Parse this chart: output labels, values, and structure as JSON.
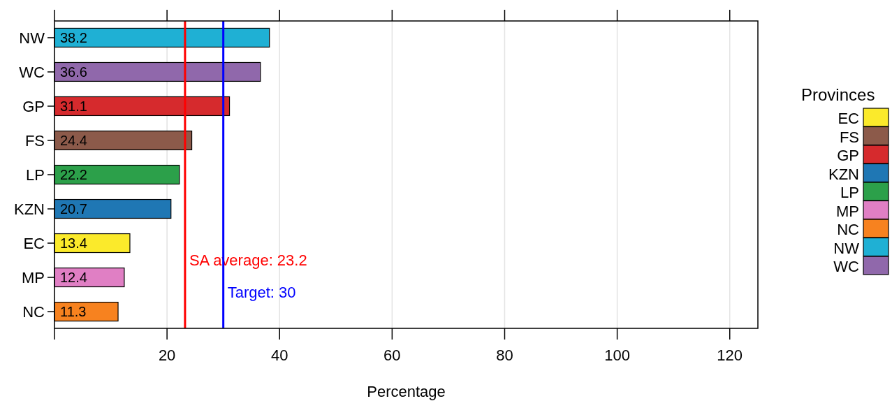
{
  "chart_data": {
    "type": "bar",
    "orientation": "horizontal",
    "data_labels": true,
    "categories": [
      "NW",
      "WC",
      "GP",
      "FS",
      "LP",
      "KZN",
      "EC",
      "MP",
      "NC"
    ],
    "series": [
      {
        "name": "EC",
        "color": "#fbea2b",
        "values": [
          null,
          null,
          null,
          null,
          null,
          null,
          13.4,
          null,
          null
        ]
      },
      {
        "name": "FS",
        "color": "#8c5a4a",
        "values": [
          null,
          null,
          null,
          24.4,
          null,
          null,
          null,
          null,
          null
        ]
      },
      {
        "name": "GP",
        "color": "#d62a2d",
        "values": [
          null,
          null,
          31.1,
          null,
          null,
          null,
          null,
          null,
          null
        ]
      },
      {
        "name": "KZN",
        "color": "#1f77b4",
        "values": [
          null,
          null,
          null,
          null,
          null,
          20.7,
          null,
          null,
          null
        ]
      },
      {
        "name": "LP",
        "color": "#2ca04a",
        "values": [
          null,
          null,
          null,
          null,
          22.2,
          null,
          null,
          null,
          null
        ]
      },
      {
        "name": "MP",
        "color": "#e07fc4",
        "values": [
          null,
          null,
          null,
          null,
          null,
          null,
          null,
          12.4,
          null
        ]
      },
      {
        "name": "NC",
        "color": "#f7821f",
        "values": [
          null,
          null,
          null,
          null,
          null,
          null,
          null,
          null,
          11.3
        ]
      },
      {
        "name": "NW",
        "color": "#1fb0d4",
        "values": [
          38.2,
          null,
          null,
          null,
          null,
          null,
          null,
          null,
          null
        ]
      },
      {
        "name": "WC",
        "color": "#9068ab",
        "values": [
          null,
          36.6,
          null,
          null,
          null,
          null,
          null,
          null,
          null
        ]
      }
    ],
    "xlim": [
      0,
      125
    ],
    "xticks": [
      {
        "value": 0,
        "label": null
      },
      20,
      40,
      60,
      80,
      100,
      120
    ],
    "xlabel": "Percentage",
    "grid": "x",
    "legend": "right",
    "legend_title": "Provinces",
    "ref_lines": [
      {
        "axis": "x",
        "value": 23.2,
        "label": "SA average: 23.2",
        "color": "#ff0000"
      },
      {
        "axis": "x",
        "value": 30,
        "label": "Target:  30",
        "color": "#0000ff"
      }
    ]
  }
}
